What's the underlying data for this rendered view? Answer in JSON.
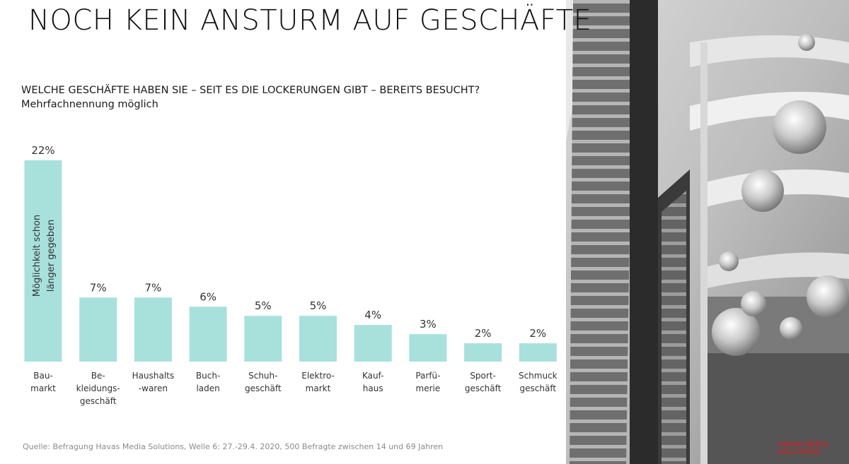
{
  "title": "NOCH KEIN ANSTURM AUF GESCHÄFTE",
  "question": "WELCHE GESCHÄFTE HABEN SIE – SEIT ES DIE LOCKERUNGEN GIBT – BEREITS BESUCHT? Mehrfachnennung möglich",
  "source": "Quelle: Befragung Havas Media Solutions, Welle 6: 27.-29.4. 2020, 500 Befragte zwischen 14 und 69 Jahren",
  "logo": {
    "line1": "HAVAS MEDIA",
    "line2": "SOLUTIONS"
  },
  "colors": {
    "bar": "#a8e0dc",
    "logo": "#c8262c"
  },
  "chart_data": {
    "type": "bar",
    "categories": [
      [
        "Bau-",
        "markt"
      ],
      [
        "Be-",
        "kleidungs-",
        "geschäft"
      ],
      [
        "Haushalts",
        "-waren"
      ],
      [
        "Buch-",
        "laden"
      ],
      [
        "Schuh-",
        "geschäft"
      ],
      [
        "Elektro-",
        "markt"
      ],
      [
        "Kauf-",
        "haus"
      ],
      [
        "Parfü-",
        "merie"
      ],
      [
        "Sport-",
        "geschäft"
      ],
      [
        "Schmuck",
        "geschäft"
      ]
    ],
    "values": [
      22,
      7,
      7,
      6,
      5,
      5,
      4,
      3,
      2,
      2
    ],
    "value_labels": [
      "22%",
      "7%",
      "7%",
      "6%",
      "5%",
      "5%",
      "4%",
      "3%",
      "2%",
      "2%"
    ],
    "annotation": {
      "bar_index": 0,
      "lines": [
        "Möglichkeit schon",
        "länger gegeben"
      ]
    },
    "ylim": [
      0,
      22
    ],
    "grid": false,
    "legend": "none"
  }
}
